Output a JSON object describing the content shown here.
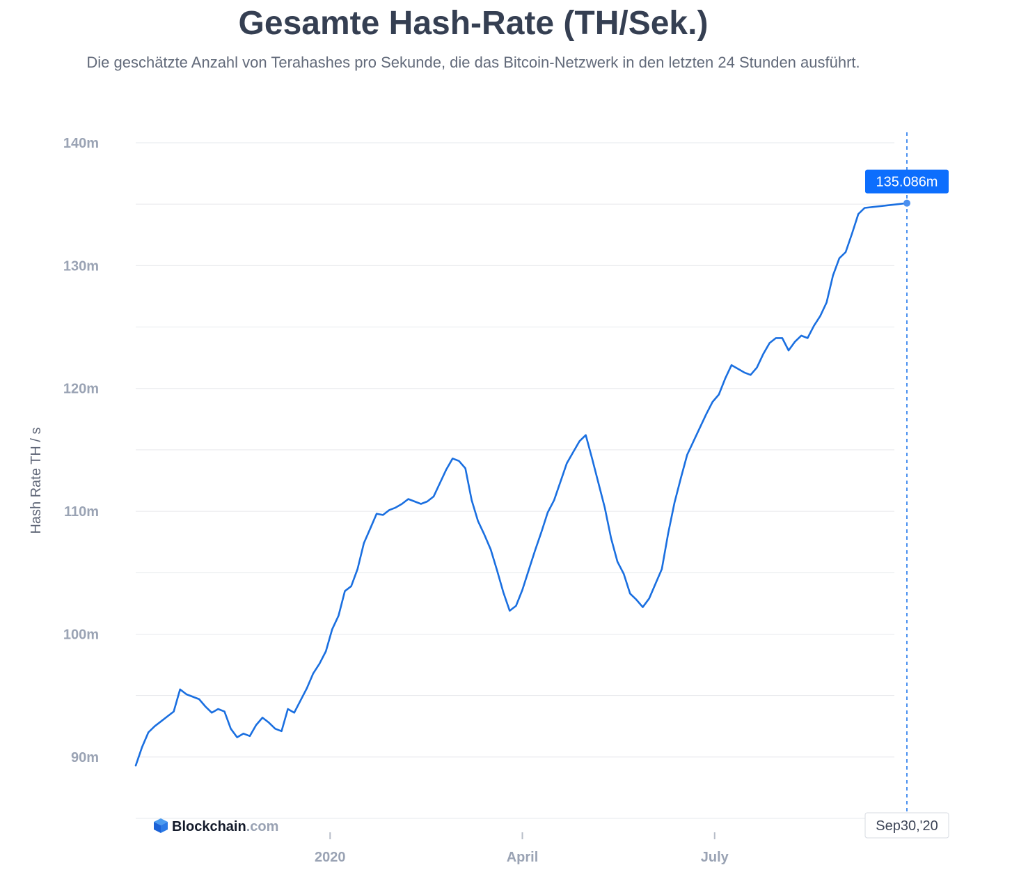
{
  "title": "Gesamte Hash-Rate (TH/Sek.)",
  "subtitle": "Die geschätzte Anzahl von Terahashes pro Sekunde, die das Bitcoin-Netzwerk in den letzten 24 Stunden ausführt.",
  "brand": {
    "name": "Blockchain",
    "suffix": ".com",
    "icon": "blockchain-cube-icon"
  },
  "colors": {
    "line": "#1a6fe0",
    "grid": "#e6e8ec",
    "tooltip_bg": "#0d6efd",
    "crosshair": "#4a90f0"
  },
  "chart_data": {
    "type": "line",
    "title": "Gesamte Hash-Rate (TH/Sek.)",
    "subtitle": "Die geschätzte Anzahl von Terahashes pro Sekunde, die das Bitcoin-Netzwerk in den letzten 24 Stunden ausführt.",
    "xlabel": "",
    "ylabel": "Hash Rate TH / s",
    "ylim": [
      85,
      140
    ],
    "grid": true,
    "y_ticks": [
      {
        "value": 90,
        "label": "90m"
      },
      {
        "value": 100,
        "label": "100m"
      },
      {
        "value": 110,
        "label": "110m"
      },
      {
        "value": 120,
        "label": "120m"
      },
      {
        "value": 130,
        "label": "130m"
      },
      {
        "value": 140,
        "label": "140m"
      }
    ],
    "x_ticks": [
      {
        "value": "2020-01-01",
        "label": "2020"
      },
      {
        "value": "2020-04-01",
        "label": "April"
      },
      {
        "value": "2020-07-01",
        "label": "July"
      }
    ],
    "xlim": [
      "2019-10-01",
      "2020-09-30"
    ],
    "hover": {
      "date": "2020-09-30",
      "date_label": "Sep30,'20",
      "value": 135.086,
      "value_label": "135.086m"
    },
    "series": [
      {
        "values": [
          [
            "2019-10-01",
            89.3
          ],
          [
            "2019-10-04",
            90.8
          ],
          [
            "2019-10-07",
            92.0
          ],
          [
            "2019-10-10",
            92.5
          ],
          [
            "2019-10-13",
            92.9
          ],
          [
            "2019-10-16",
            93.3
          ],
          [
            "2019-10-19",
            93.7
          ],
          [
            "2019-10-22",
            95.5
          ],
          [
            "2019-10-25",
            95.1
          ],
          [
            "2019-10-28",
            94.9
          ],
          [
            "2019-10-31",
            94.7
          ],
          [
            "2019-11-03",
            94.1
          ],
          [
            "2019-11-06",
            93.6
          ],
          [
            "2019-11-09",
            93.9
          ],
          [
            "2019-11-12",
            93.7
          ],
          [
            "2019-11-15",
            92.3
          ],
          [
            "2019-11-18",
            91.6
          ],
          [
            "2019-11-21",
            91.9
          ],
          [
            "2019-11-24",
            91.7
          ],
          [
            "2019-11-27",
            92.6
          ],
          [
            "2019-11-30",
            93.2
          ],
          [
            "2019-12-03",
            92.8
          ],
          [
            "2019-12-06",
            92.3
          ],
          [
            "2019-12-09",
            92.1
          ],
          [
            "2019-12-12",
            93.9
          ],
          [
            "2019-12-15",
            93.6
          ],
          [
            "2019-12-18",
            94.6
          ],
          [
            "2019-12-21",
            95.6
          ],
          [
            "2019-12-24",
            96.8
          ],
          [
            "2019-12-27",
            97.6
          ],
          [
            "2019-12-30",
            98.6
          ],
          [
            "2020-01-02",
            100.4
          ],
          [
            "2020-01-05",
            101.5
          ],
          [
            "2020-01-08",
            103.5
          ],
          [
            "2020-01-11",
            103.9
          ],
          [
            "2020-01-14",
            105.3
          ],
          [
            "2020-01-17",
            107.4
          ],
          [
            "2020-01-20",
            108.6
          ],
          [
            "2020-01-23",
            109.8
          ],
          [
            "2020-01-26",
            109.7
          ],
          [
            "2020-01-29",
            110.1
          ],
          [
            "2020-02-01",
            110.3
          ],
          [
            "2020-02-04",
            110.6
          ],
          [
            "2020-02-07",
            111.0
          ],
          [
            "2020-02-10",
            110.8
          ],
          [
            "2020-02-13",
            110.6
          ],
          [
            "2020-02-16",
            110.8
          ],
          [
            "2020-02-19",
            111.2
          ],
          [
            "2020-02-22",
            112.3
          ],
          [
            "2020-02-25",
            113.4
          ],
          [
            "2020-02-28",
            114.3
          ],
          [
            "2020-03-02",
            114.1
          ],
          [
            "2020-03-05",
            113.5
          ],
          [
            "2020-03-08",
            110.9
          ],
          [
            "2020-03-11",
            109.2
          ],
          [
            "2020-03-14",
            108.1
          ],
          [
            "2020-03-17",
            106.9
          ],
          [
            "2020-03-20",
            105.2
          ],
          [
            "2020-03-23",
            103.4
          ],
          [
            "2020-03-26",
            101.9
          ],
          [
            "2020-03-29",
            102.3
          ],
          [
            "2020-04-01",
            103.6
          ],
          [
            "2020-04-04",
            105.2
          ],
          [
            "2020-04-07",
            106.8
          ],
          [
            "2020-04-10",
            108.3
          ],
          [
            "2020-04-13",
            109.9
          ],
          [
            "2020-04-16",
            110.9
          ],
          [
            "2020-04-19",
            112.4
          ],
          [
            "2020-04-22",
            113.9
          ],
          [
            "2020-04-25",
            114.8
          ],
          [
            "2020-04-28",
            115.7
          ],
          [
            "2020-05-01",
            116.2
          ],
          [
            "2020-05-04",
            114.3
          ],
          [
            "2020-05-07",
            112.3
          ],
          [
            "2020-05-10",
            110.3
          ],
          [
            "2020-05-13",
            107.8
          ],
          [
            "2020-05-16",
            105.9
          ],
          [
            "2020-05-19",
            104.9
          ],
          [
            "2020-05-22",
            103.3
          ],
          [
            "2020-05-25",
            102.8
          ],
          [
            "2020-05-28",
            102.2
          ],
          [
            "2020-05-31",
            102.9
          ],
          [
            "2020-06-03",
            104.1
          ],
          [
            "2020-06-06",
            105.3
          ],
          [
            "2020-06-09",
            108.2
          ],
          [
            "2020-06-12",
            110.7
          ],
          [
            "2020-06-15",
            112.7
          ],
          [
            "2020-06-18",
            114.6
          ],
          [
            "2020-06-21",
            115.7
          ],
          [
            "2020-06-24",
            116.8
          ],
          [
            "2020-06-27",
            117.9
          ],
          [
            "2020-06-30",
            118.9
          ],
          [
            "2020-07-03",
            119.5
          ],
          [
            "2020-07-06",
            120.8
          ],
          [
            "2020-07-09",
            121.9
          ],
          [
            "2020-07-12",
            121.6
          ],
          [
            "2020-07-15",
            121.3
          ],
          [
            "2020-07-18",
            121.1
          ],
          [
            "2020-07-21",
            121.7
          ],
          [
            "2020-07-24",
            122.8
          ],
          [
            "2020-07-27",
            123.7
          ],
          [
            "2020-07-30",
            124.1
          ],
          [
            "2020-08-02",
            124.1
          ],
          [
            "2020-08-05",
            123.1
          ],
          [
            "2020-08-08",
            123.8
          ],
          [
            "2020-08-11",
            124.3
          ],
          [
            "2020-08-14",
            124.1
          ],
          [
            "2020-08-17",
            125.1
          ],
          [
            "2020-08-20",
            125.9
          ],
          [
            "2020-08-23",
            127.0
          ],
          [
            "2020-08-26",
            129.2
          ],
          [
            "2020-08-29",
            130.6
          ],
          [
            "2020-09-01",
            131.1
          ],
          [
            "2020-09-04",
            132.6
          ],
          [
            "2020-09-07",
            134.2
          ],
          [
            "2020-09-10",
            134.7
          ],
          [
            "2020-09-30",
            135.086
          ]
        ]
      }
    ]
  }
}
